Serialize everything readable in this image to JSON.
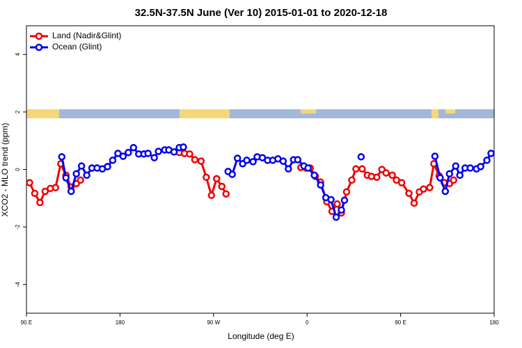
{
  "chart_data": {
    "type": "line",
    "title": "32.5N-37.5N June (Ver 10)   2015-01-01 to 2020-12-18",
    "x_label": "Longitude (deg E)",
    "y_label": "XCO2 - MLO trend (ppm)",
    "xlim": [
      90,
      540
    ],
    "ylim": [
      -5,
      5
    ],
    "xticks": [
      {
        "value": 90,
        "label": "90 E"
      },
      180,
      {
        "value": 270,
        "label": "90 W"
      },
      {
        "value": 360,
        "label": "0"
      },
      {
        "value": 450,
        "label": "90 E"
      },
      {
        "value": 540,
        "label": "180"
      }
    ],
    "yticks": [
      -4,
      -2,
      0,
      2,
      4
    ],
    "legend": "top-left",
    "series": [
      {
        "name": "Land (Nadir&Glint)",
        "color": "#ee0000",
        "x": [
          93,
          98,
          103,
          108,
          113,
          118,
          123,
          128,
          133,
          138,
          142,
          null,
          237,
          242,
          247,
          252,
          258,
          263,
          268,
          273,
          278,
          282,
          null,
          354,
          359,
          363,
          368,
          373,
          379,
          384,
          389,
          393,
          398,
          403,
          407,
          413,
          418,
          422,
          427,
          432,
          436,
          442,
          446,
          451,
          458,
          463,
          468,
          472,
          478,
          482,
          487,
          492,
          497,
          501
        ],
        "values": [
          -0.46,
          -0.83,
          -1.15,
          -0.76,
          -0.66,
          -0.63,
          0.2,
          -0.2,
          -0.61,
          -0.49,
          -0.37,
          null,
          0.59,
          0.56,
          0.54,
          0.34,
          0.29,
          -0.27,
          -0.9,
          -0.32,
          -0.59,
          -0.85,
          null,
          0.07,
          0.05,
          0.05,
          -0.24,
          -0.44,
          -1.12,
          -1.46,
          -1.2,
          -1.51,
          -0.78,
          -0.37,
          0.02,
          0.02,
          -0.2,
          -0.24,
          -0.27,
          0,
          -0.12,
          -0.2,
          -0.37,
          -0.46,
          -0.83,
          -1.17,
          -0.78,
          -0.68,
          -0.63,
          0.2,
          -0.22,
          -0.46,
          -0.49,
          -0.37
        ]
      },
      {
        "name": "Ocean (Glint)",
        "color": "#0000ee",
        "x": [
          124,
          128,
          133,
          138,
          143,
          148,
          153,
          158,
          163,
          168,
          173,
          178,
          183,
          188,
          193,
          198,
          203,
          207,
          213,
          217,
          223,
          227,
          232,
          237,
          241,
          null,
          284,
          288,
          293,
          298,
          302,
          308,
          312,
          317,
          322,
          327,
          332,
          337,
          342,
          347,
          351,
          357,
          361,
          367,
          373,
          378,
          383,
          388,
          393,
          396,
          null,
          412,
          null,
          483,
          488,
          493,
          497,
          503,
          507,
          512,
          517,
          523,
          527,
          533,
          537
        ],
        "values": [
          0.44,
          -0.29,
          -0.76,
          -0.15,
          0.12,
          -0.2,
          0.05,
          0.05,
          0.02,
          0.1,
          0.32,
          0.56,
          0.46,
          0.59,
          0.76,
          0.54,
          0.54,
          0.56,
          0.41,
          0.63,
          0.68,
          0.68,
          0.61,
          0.76,
          0.78,
          null,
          -0.07,
          -0.17,
          0.39,
          0.2,
          0.32,
          0.27,
          0.44,
          0.41,
          0.32,
          0.32,
          0.37,
          0.29,
          0.02,
          0.34,
          0.34,
          0.12,
          0.05,
          -0.2,
          -0.54,
          -0.98,
          -1.05,
          -1.66,
          -1.41,
          -1.07,
          null,
          0.44,
          null,
          0.46,
          -0.29,
          -0.76,
          -0.15,
          0.12,
          -0.2,
          0.05,
          0.05,
          0.02,
          0.1,
          0.32,
          0.56
        ]
      }
    ]
  }
}
